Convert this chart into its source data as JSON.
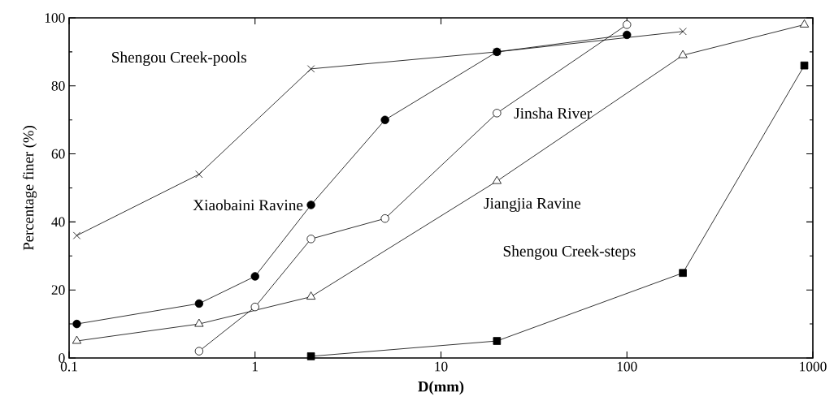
{
  "chart_data": {
    "type": "line",
    "xlabel": "D(mm)",
    "ylabel": "Percentage finer (%)",
    "log": "x",
    "xlim": [
      0.1,
      1000
    ],
    "ylim": [
      0,
      100
    ],
    "xticks": [
      0.1,
      1,
      10,
      100,
      1000
    ],
    "yticks": [
      0,
      20,
      40,
      60,
      80,
      100
    ],
    "grid": false,
    "legend": false,
    "line_style": "solid",
    "series": [
      {
        "name": "Shengou Creek-pools",
        "color": "#000000",
        "marker": "cross",
        "x": [
          0.11,
          0.5,
          2,
          20,
          200
        ],
        "values": [
          36,
          54,
          85,
          90,
          96
        ]
      },
      {
        "name": "Xiaobaini Ravine",
        "color": "#000000",
        "marker": "circle",
        "x": [
          0.11,
          0.5,
          1,
          2,
          5,
          20,
          100
        ],
        "values": [
          10,
          16,
          24,
          45,
          70,
          90,
          95
        ]
      },
      {
        "name": "Jinsha River",
        "color": "#000000",
        "marker": "circle",
        "x": [
          0.5,
          1,
          2,
          5,
          20,
          100
        ],
        "values": [
          2,
          15,
          35,
          41,
          72,
          98
        ]
      },
      {
        "name": "Jiangjia Ravine",
        "color": "#000000",
        "marker": "triangle",
        "x": [
          0.11,
          0.5,
          2,
          20,
          200,
          900
        ],
        "values": [
          5,
          10,
          18,
          52,
          89,
          98
        ]
      },
      {
        "name": "Shengou Creek-steps",
        "color": "#000000",
        "marker": "square",
        "x": [
          2,
          20,
          200,
          900
        ],
        "values": [
          0.5,
          5,
          25,
          86
        ]
      }
    ]
  }
}
